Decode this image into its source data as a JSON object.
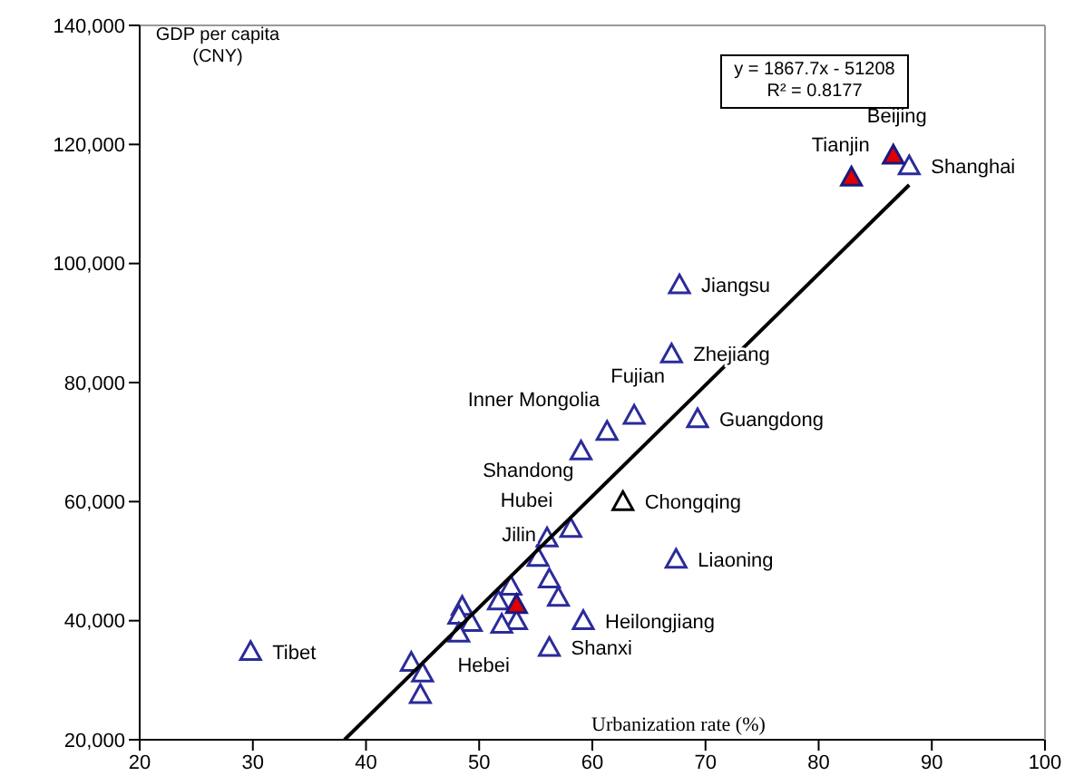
{
  "chart_data": {
    "type": "scatter",
    "xlabel": "Urbanization rate (%)",
    "ylabel": "GDP per capita (CNY)",
    "marker": "triangle",
    "xlim": [
      20,
      100
    ],
    "xticks": [
      20,
      30,
      40,
      50,
      60,
      70,
      80,
      90,
      100
    ],
    "ylim": [
      20000,
      140000
    ],
    "yticks": [
      {
        "value": 20000,
        "label": "20,000"
      },
      {
        "value": 40000,
        "label": "40,000"
      },
      {
        "value": 60000,
        "label": "60,000"
      },
      {
        "value": 80000,
        "label": "80,000"
      },
      {
        "value": 100000,
        "label": "100,000"
      },
      {
        "value": 120000,
        "label": "120,000"
      },
      {
        "value": 140000,
        "label": "140,000"
      }
    ],
    "series": [
      {
        "color": "#2b2b9a",
        "x": [
          29.8,
          88.0,
          67.7,
          67.0,
          63.7,
          61.3,
          69.3,
          59.0,
          58.1,
          56.0,
          55.2,
          56.2,
          57.0,
          59.2,
          56.2,
          67.4,
          52.8,
          51.7,
          53.3,
          52.0,
          48.5,
          48.2,
          49.3,
          48.2,
          44.0,
          45.0,
          44.8
        ],
        "values": [
          34800,
          116400,
          96400,
          84800,
          74500,
          71800,
          73900,
          68500,
          55500,
          53900,
          50600,
          47000,
          43900,
          40000,
          35500,
          50300,
          45800,
          43300,
          40000,
          39400,
          42400,
          40900,
          39700,
          37900,
          33000,
          31200,
          27600
        ]
      },
      {
        "color": "#e00000",
        "x": [
          82.9,
          86.6,
          53.3
        ],
        "values": [
          114500,
          118200,
          42700
        ]
      },
      {
        "color": "#000000",
        "x": [
          62.7
        ],
        "values": [
          60000
        ]
      },
      {
        "type": "line",
        "color": "#000000",
        "marker": "none",
        "x": [
          38.1,
          88.0
        ],
        "values": [
          20000,
          113200
        ]
      }
    ],
    "annotations": [
      "y = 1867.7x - 51208\nR² = 0.8177",
      {
        "text": "Tibet",
        "x": 29.8,
        "y": 34800
      },
      {
        "text": "Shanghai",
        "x": 88.0,
        "y": 116400
      },
      {
        "text": "Tianjin",
        "x": 82.9,
        "y": 114500
      },
      {
        "text": "Beijing",
        "x": 86.6,
        "y": 118200
      },
      {
        "text": "Jiangsu",
        "x": 67.7,
        "y": 96400
      },
      {
        "text": "Zhejiang",
        "x": 67.0,
        "y": 84800
      },
      {
        "text": "Fujian",
        "x": 63.7,
        "y": 74500
      },
      {
        "text": "Inner Mongolia",
        "x": 61.3,
        "y": 71800
      },
      {
        "text": "Guangdong",
        "x": 69.3,
        "y": 73900
      },
      {
        "text": "Shandong",
        "x": 59.0,
        "y": 68500
      },
      {
        "text": "Chongqing",
        "x": 62.7,
        "y": 60000
      },
      {
        "text": "Hubei",
        "x": 58.1,
        "y": 55500
      },
      {
        "text": "Jilin",
        "x": 56.0,
        "y": 53900
      },
      {
        "text": "Liaoning",
        "x": 67.4,
        "y": 50300
      },
      {
        "text": "Heilongjiang",
        "x": 59.2,
        "y": 40000
      },
      {
        "text": "Shanxi",
        "x": 56.2,
        "y": 35500
      },
      {
        "text": "Hebei",
        "x": 52.0,
        "y": 39400
      }
    ]
  }
}
